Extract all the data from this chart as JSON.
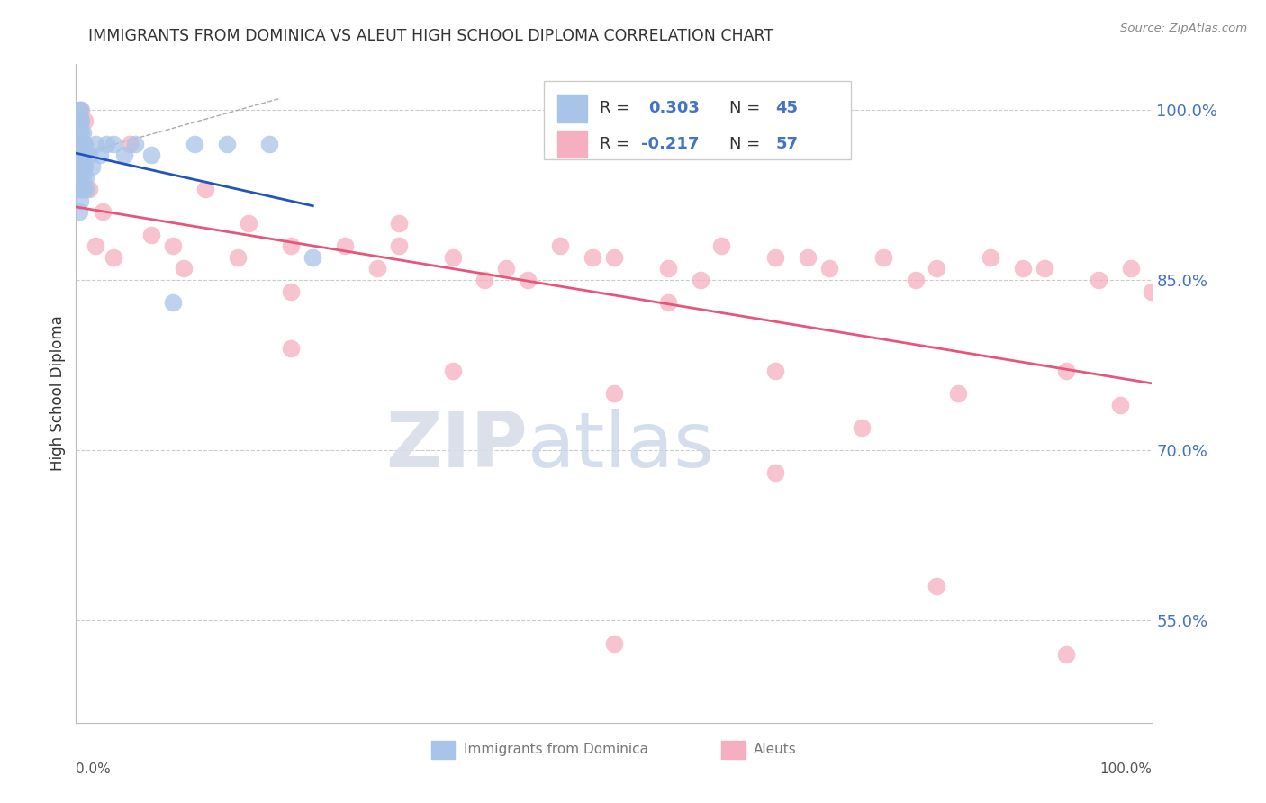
{
  "title": "IMMIGRANTS FROM DOMINICA VS ALEUT HIGH SCHOOL DIPLOMA CORRELATION CHART",
  "source": "Source: ZipAtlas.com",
  "ylabel": "High School Diploma",
  "legend_blue_label": "Immigrants from Dominica",
  "legend_pink_label": "Aleuts",
  "blue_color": "#a8c4e8",
  "pink_color": "#f5afc0",
  "blue_line_color": "#2255bb",
  "pink_line_color": "#e8557a",
  "value_color": "#4472c4",
  "text_color": "#333333",
  "grid_color": "#cccccc",
  "xlim": [
    0.0,
    1.0
  ],
  "ylim": [
    0.46,
    1.04
  ],
  "yticks": [
    0.55,
    0.7,
    0.85,
    1.0
  ],
  "blue_r": "0.303",
  "blue_n": "45",
  "pink_r": "-0.217",
  "pink_n": "57",
  "blue_scatter_x": [
    0.003,
    0.003,
    0.003,
    0.003,
    0.003,
    0.003,
    0.003,
    0.003,
    0.004,
    0.004,
    0.004,
    0.004,
    0.004,
    0.004,
    0.005,
    0.005,
    0.005,
    0.005,
    0.005,
    0.006,
    0.006,
    0.006,
    0.007,
    0.007,
    0.007,
    0.008,
    0.008,
    0.009,
    0.009,
    0.01,
    0.01,
    0.012,
    0.015,
    0.018,
    0.022,
    0.028,
    0.035,
    0.045,
    0.055,
    0.07,
    0.09,
    0.11,
    0.14,
    0.18,
    0.22
  ],
  "blue_scatter_y": [
    1.0,
    0.99,
    0.98,
    0.97,
    0.96,
    0.95,
    0.93,
    0.91,
    1.0,
    0.99,
    0.98,
    0.96,
    0.94,
    0.92,
    0.99,
    0.98,
    0.97,
    0.95,
    0.93,
    0.98,
    0.96,
    0.94,
    0.97,
    0.95,
    0.93,
    0.97,
    0.95,
    0.96,
    0.94,
    0.96,
    0.93,
    0.96,
    0.95,
    0.97,
    0.96,
    0.97,
    0.97,
    0.96,
    0.97,
    0.96,
    0.83,
    0.97,
    0.97,
    0.97,
    0.87
  ],
  "pink_scatter_x": [
    0.003,
    0.004,
    0.005,
    0.006,
    0.008,
    0.012,
    0.018,
    0.025,
    0.035,
    0.05,
    0.07,
    0.09,
    0.12,
    0.16,
    0.2,
    0.25,
    0.3,
    0.35,
    0.4,
    0.45,
    0.5,
    0.55,
    0.6,
    0.65,
    0.7,
    0.75,
    0.8,
    0.85,
    0.9,
    0.95,
    0.98,
    1.0,
    0.1,
    0.15,
    0.2,
    0.28,
    0.38,
    0.48,
    0.58,
    0.68,
    0.78,
    0.88,
    0.3,
    0.42,
    0.55,
    0.65,
    0.73,
    0.82,
    0.92,
    0.97,
    0.2,
    0.35,
    0.5,
    0.65,
    0.8,
    0.92,
    0.5
  ],
  "pink_scatter_y": [
    0.97,
    0.94,
    1.0,
    0.95,
    0.99,
    0.93,
    0.88,
    0.91,
    0.87,
    0.97,
    0.89,
    0.88,
    0.93,
    0.9,
    0.88,
    0.88,
    0.9,
    0.87,
    0.86,
    0.88,
    0.87,
    0.86,
    0.88,
    0.87,
    0.86,
    0.87,
    0.86,
    0.87,
    0.86,
    0.85,
    0.86,
    0.84,
    0.86,
    0.87,
    0.84,
    0.86,
    0.85,
    0.87,
    0.85,
    0.87,
    0.85,
    0.86,
    0.88,
    0.85,
    0.83,
    0.77,
    0.72,
    0.75,
    0.77,
    0.74,
    0.79,
    0.77,
    0.75,
    0.68,
    0.58,
    0.52,
    0.53
  ],
  "dashed_line_x": [
    0.0,
    0.19
  ],
  "dashed_line_y": [
    0.96,
    1.01
  ]
}
